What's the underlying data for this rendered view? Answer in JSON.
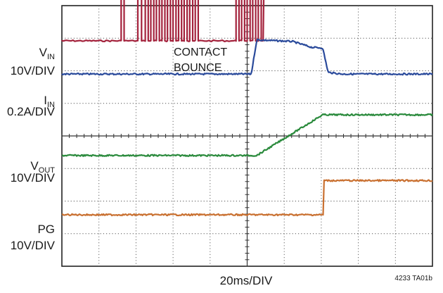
{
  "chart_data": {
    "type": "line",
    "title": "",
    "xlabel": "20ms/DIV",
    "figure_id": "4233 TA01b",
    "grid": true,
    "divisions": {
      "x": 10,
      "y": 8
    },
    "annotation": [
      "CONTACT",
      "BOUNCE"
    ],
    "series": [
      {
        "name": "VIN",
        "label_main": "V",
        "label_sub": "IN",
        "scale": "10V/DIV",
        "color": "#a3213b",
        "baseline_div": 1.08,
        "low_div": 0.0,
        "high_div": 1.5,
        "bounce_start_div": 1.6,
        "bounce_end_div": 5.45,
        "bounce_edges_div": [
          1.6,
          1.68,
          2.05,
          2.15,
          2.25,
          2.33,
          2.4,
          2.48,
          2.55,
          2.63,
          2.7,
          2.78,
          2.85,
          2.93,
          3.0,
          3.08,
          3.15,
          3.23,
          3.3,
          3.38,
          3.45,
          3.53,
          3.6,
          3.68,
          4.7,
          4.78,
          4.85,
          4.93,
          5.0,
          5.08,
          5.15,
          5.23,
          5.3,
          5.38
        ],
        "settle_div": 5.45
      },
      {
        "name": "IIN",
        "label_main": "I",
        "label_sub": "IN",
        "scale": "0.2A/DIV",
        "color": "#2a4a9b",
        "baseline_div": 2.1,
        "points_div": [
          [
            0,
            0
          ],
          [
            6.9,
            0
          ],
          [
            7.1,
            1.05
          ],
          [
            8.4,
            1.0
          ],
          [
            9.1,
            0.82
          ],
          [
            9.5,
            0.8
          ],
          [
            9.7,
            0.05
          ],
          [
            10.2,
            0.0
          ],
          [
            13.5,
            0.0
          ]
        ],
        "t_end_div": 13.5
      },
      {
        "name": "VOUT",
        "label_main": "V",
        "label_sub": "OUT",
        "scale": "10V/DIV",
        "color": "#2a8a3c",
        "baseline_div": 4.6,
        "points_div": [
          [
            0,
            0
          ],
          [
            7.1,
            0
          ],
          [
            9.5,
            1.25
          ],
          [
            13.5,
            1.25
          ]
        ]
      },
      {
        "name": "PG",
        "label_main": "PG",
        "label_sub": "",
        "scale": "10V/DIV",
        "color": "#c97030",
        "baseline_div": 6.42,
        "points_div": [
          [
            0,
            0
          ],
          [
            9.55,
            0
          ],
          [
            9.55,
            1.05
          ],
          [
            13.5,
            1.05
          ]
        ]
      }
    ]
  }
}
